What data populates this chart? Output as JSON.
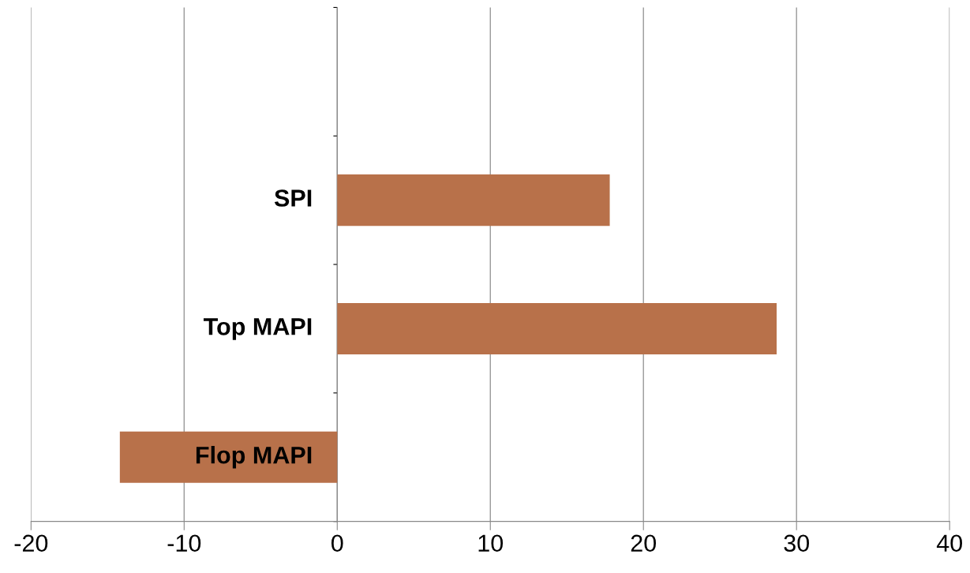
{
  "chart_data": {
    "type": "bar",
    "orientation": "horizontal",
    "categories": [
      null,
      "SPI",
      "Top MAPI",
      "Flop MAPI"
    ],
    "values": [
      null,
      17.8,
      28.7,
      -14.2
    ],
    "color": "#b8714a",
    "xlim": [
      -20,
      40
    ],
    "xticks": [
      -20,
      -10,
      0,
      10,
      20,
      30,
      40
    ],
    "grid": "x",
    "legend": false
  }
}
